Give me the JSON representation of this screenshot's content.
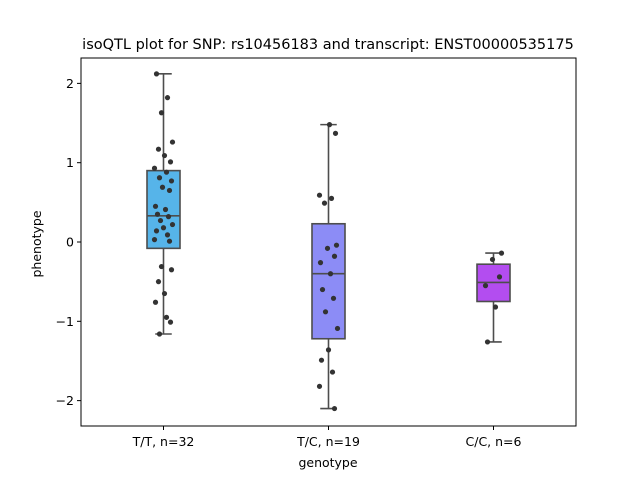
{
  "chart_data": {
    "type": "box",
    "title": "isoQTL plot for SNP: rs10456183 and transcript: ENST00000535175",
    "xlabel": "genotype",
    "ylabel": "phenotype",
    "ylim": [
      -2.32,
      2.32
    ],
    "yticks": [
      2,
      1,
      0,
      -1,
      -2
    ],
    "ytick_labels": [
      "2",
      "1",
      "0",
      "−1",
      "−2"
    ],
    "grid": false,
    "categories": [
      "T/T, n=32",
      "T/C, n=19",
      "C/C, n=6"
    ],
    "boxes": [
      {
        "category": "T/T, n=32",
        "color": "#56b4e9",
        "whisker_low": -1.16,
        "q1": -0.08,
        "median": 0.33,
        "q3": 0.9,
        "whisker_high": 2.12
      },
      {
        "category": "T/C, n=19",
        "color": "#8c8cf6",
        "whisker_low": -2.1,
        "q1": -1.22,
        "median": -0.4,
        "q3": 0.23,
        "whisker_high": 1.48
      },
      {
        "category": "C/C, n=6",
        "color": "#b34df0",
        "whisker_low": -1.26,
        "q1": -0.75,
        "median": -0.51,
        "q3": -0.28,
        "whisker_high": -0.14
      }
    ],
    "points": [
      [
        2.12,
        1.82,
        1.63,
        1.26,
        1.17,
        1.09,
        1.01,
        0.93,
        0.88,
        0.81,
        0.77,
        0.69,
        0.65,
        0.45,
        0.41,
        0.35,
        0.32,
        0.27,
        0.22,
        0.18,
        0.14,
        0.09,
        0.03,
        0.01,
        -0.31,
        -0.35,
        -0.5,
        -0.65,
        -0.76,
        -0.95,
        -1.01,
        -1.16
      ],
      [
        1.48,
        1.37,
        0.59,
        0.55,
        0.49,
        -0.04,
        -0.08,
        -0.18,
        -0.26,
        -0.4,
        -0.6,
        -0.71,
        -0.88,
        -1.09,
        -1.36,
        -1.49,
        -1.64,
        -1.82,
        -2.1
      ],
      [
        -0.14,
        -0.22,
        -0.44,
        -0.55,
        -0.82,
        -1.26
      ]
    ],
    "point_color": "#333333"
  }
}
